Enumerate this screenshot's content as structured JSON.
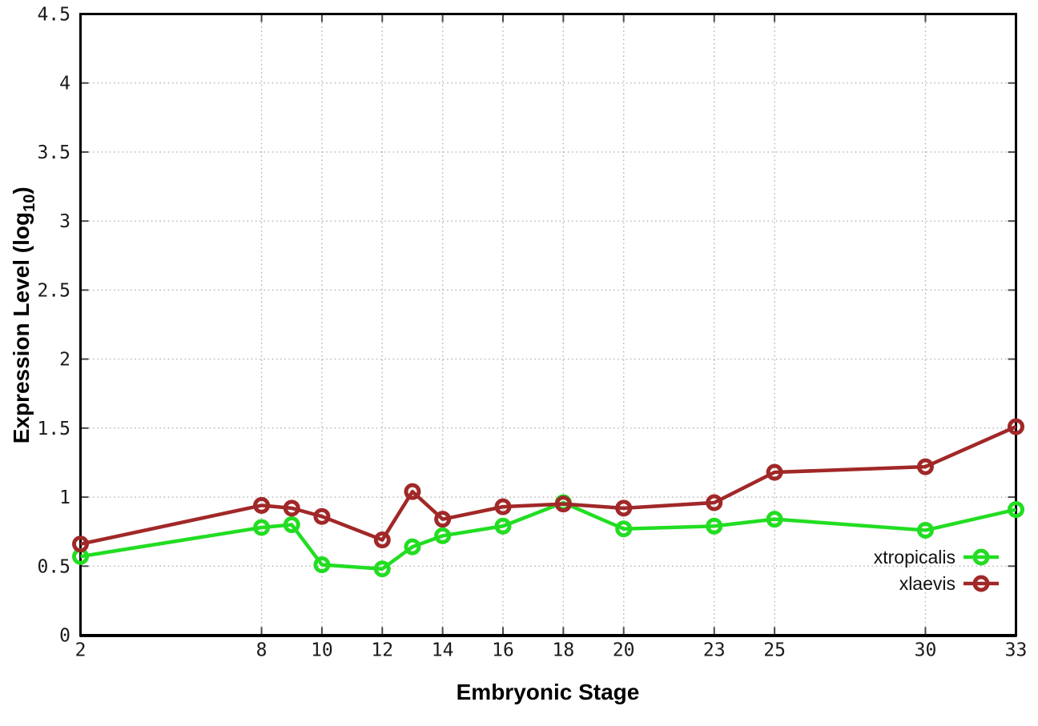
{
  "chart_data": {
    "type": "line",
    "title": "",
    "xlabel": "Embryonic Stage",
    "ylabel": {
      "main": "Expression Level (log",
      "sub": "10",
      "end": ")"
    },
    "x": [
      2,
      8,
      9,
      10,
      12,
      13,
      14,
      16,
      18,
      20,
      23,
      25,
      30,
      33
    ],
    "x_tick_labels": [
      "2",
      "8",
      "10",
      "12",
      "14",
      "16",
      "18",
      "20",
      "23",
      "25",
      "30",
      "33"
    ],
    "x_ticks": [
      2,
      8,
      10,
      12,
      14,
      16,
      18,
      20,
      23,
      25,
      30,
      33
    ],
    "xlim": [
      2,
      33
    ],
    "ylim": [
      0,
      4.5
    ],
    "y_ticks": [
      0,
      0.5,
      1,
      1.5,
      2,
      2.5,
      3,
      3.5,
      4,
      4.5
    ],
    "y_tick_labels": [
      "0",
      "0.5",
      "1",
      "1.5",
      "2",
      "2.5",
      "3",
      "3.5",
      "4",
      "4.5"
    ],
    "grid": true,
    "legend_position": "bottom-right",
    "series": [
      {
        "name": "xtropicalis",
        "color": "#22dd22",
        "values": [
          0.57,
          0.78,
          0.8,
          0.51,
          0.48,
          0.64,
          0.72,
          0.79,
          0.96,
          0.77,
          0.79,
          0.84,
          0.76,
          0.91
        ]
      },
      {
        "name": "xlaevis",
        "color": "#a12828",
        "values": [
          0.66,
          0.94,
          0.92,
          0.86,
          0.69,
          1.04,
          0.84,
          0.93,
          0.95,
          0.92,
          0.96,
          1.18,
          1.22,
          1.51
        ]
      }
    ]
  },
  "colors": {
    "background": "#ffffff",
    "axis_border": "#000000",
    "grid": "#b5b5b5",
    "tick_mark": "#4a4a4a",
    "tick_label": "#1a1a1a"
  }
}
